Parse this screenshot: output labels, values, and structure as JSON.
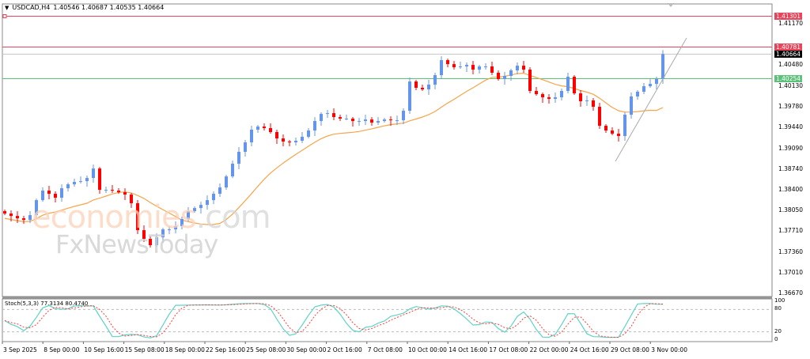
{
  "header": {
    "symbol": "USDCAD,H4",
    "ohlc": "1.40546 1.40687 1.40535 1.40664"
  },
  "stoch_header": {
    "label": "Stoch(5,3,3) 77.3134 80.4740"
  },
  "watermark": {
    "line1": "economies",
    "line1_suffix": ".com",
    "line2": "FxNewsToday"
  },
  "colors": {
    "bull": "#6495ED",
    "bear": "#FF0000",
    "ma": "#F5A54A",
    "resistance": "#E8445A",
    "support": "#5CC27A",
    "stoch_main": "#5FD3C6",
    "stoch_signal": "#FF3B3B"
  },
  "chart_data": {
    "type": "candlestick",
    "title": "USDCAD,H4",
    "ylim": [
      1.365,
      1.4155
    ],
    "y_ticks": [
      "1.41170",
      "1.40480",
      "1.40130",
      "1.39780",
      "1.39440",
      "1.39090",
      "1.38740",
      "1.38400",
      "1.38050",
      "1.37710",
      "1.37360",
      "1.37010",
      "1.36670"
    ],
    "y_tick_values": [
      1.4117,
      1.4048,
      1.4013,
      1.3978,
      1.3944,
      1.3909,
      1.3874,
      1.384,
      1.3805,
      1.3771,
      1.3736,
      1.3701,
      1.3667
    ],
    "x_ticks": [
      "3 Sep 2025",
      "8 Sep 00:00",
      "10 Sep 16:00",
      "15 Sep 08:00",
      "18 Sep 00:00",
      "22 Sep 16:00",
      "25 Sep 08:00",
      "30 Sep 00:00",
      "2 Oct 16:00",
      "7 Oct 08:00",
      "10 Oct 00:00",
      "14 Oct 16:00",
      "17 Oct 08:00",
      "22 Oct 00:00",
      "24 Oct 16:00",
      "29 Oct 08:00",
      "3 Nov 00:00"
    ],
    "closes": [
      1.38002,
      1.37962,
      1.37923,
      1.37896,
      1.37976,
      1.38226,
      1.38385,
      1.38332,
      1.38266,
      1.38424,
      1.3849,
      1.3853,
      1.38543,
      1.38596,
      1.38754,
      1.38398,
      1.38398,
      1.38385,
      1.38358,
      1.38319,
      1.38174,
      1.37725,
      1.3758,
      1.37474,
      1.37606,
      1.37738,
      1.37738,
      1.37791,
      1.3791,
      1.38042,
      1.38094,
      1.38147,
      1.38226,
      1.38332,
      1.38438,
      1.38622,
      1.38834,
      1.39032,
      1.3919,
      1.39402,
      1.39454,
      1.39428,
      1.39362,
      1.39256,
      1.39204,
      1.3919,
      1.39217,
      1.39283,
      1.39388,
      1.39546,
      1.39665,
      1.39678,
      1.39612,
      1.39586,
      1.39586,
      1.39546,
      1.39546,
      1.39572,
      1.3952,
      1.39546,
      1.39572,
      1.39559,
      1.39559,
      1.39718,
      1.40206,
      1.40101,
      1.40074,
      1.40154,
      1.40312,
      1.40562,
      1.40496,
      1.40444,
      1.40457,
      1.40483,
      1.40404,
      1.40457,
      1.40457,
      1.40352,
      1.40246,
      1.40299,
      1.40391,
      1.4047,
      1.40404,
      1.40048,
      1.39995,
      1.39942,
      1.39916,
      1.39942,
      1.40048,
      1.40286,
      1.40008,
      1.39876,
      1.3989,
      1.39784,
      1.39467,
      1.39388,
      1.39335,
      1.39296,
      1.39652,
      1.39956,
      1.40035,
      1.40127,
      1.40166,
      1.40246,
      1.40664
    ],
    "levels": [
      {
        "price": 1.41301,
        "label": "1.41301",
        "kind": "resistance"
      },
      {
        "price": 1.40781,
        "label": "1.40781",
        "kind": "resistance"
      },
      {
        "price": 1.40664,
        "label": "1.40664",
        "kind": "current"
      },
      {
        "price": 1.40254,
        "label": "1.40254",
        "kind": "support"
      }
    ],
    "trendline": {
      "start_price": 1.38873,
      "end_price": 1.40932
    },
    "stochastic": {
      "k_period": 5,
      "d_period": 3,
      "slowing": 3,
      "main": 77.3134,
      "signal": 80.474,
      "levels": [
        100,
        80,
        20,
        0
      ],
      "level_labels": [
        "100",
        "80",
        "20",
        "0"
      ]
    }
  }
}
